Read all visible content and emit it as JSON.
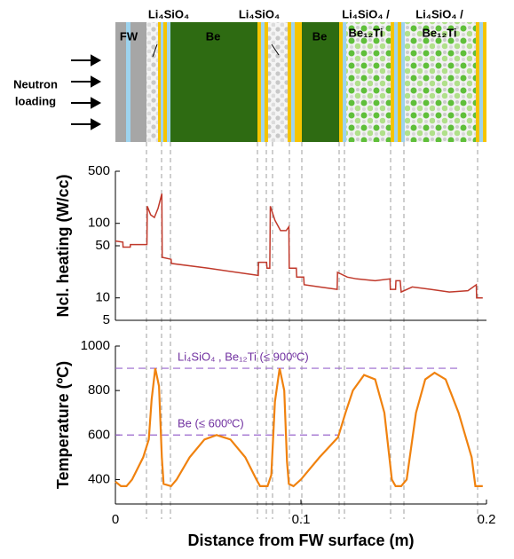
{
  "schematic": {
    "labels": [
      "FW",
      "Li₄SiO₄",
      "Be",
      "Li₄SiO₄",
      "Be",
      "Li₄SiO₄ /",
      "Be₁₂Ti",
      "Li₄SiO₄ /",
      "Be₁₂Ti"
    ],
    "source": [
      "Neutron",
      "loading"
    ]
  },
  "chart_data": [
    {
      "type": "line",
      "y_label": "Ncl. heating (W/cc)",
      "color": "#c0392b",
      "log": true,
      "xlim": [
        0,
        0.2
      ],
      "ylim": [
        5,
        500
      ],
      "yticks": [
        5,
        10,
        50,
        100,
        500
      ],
      "x": [
        0,
        0.004,
        0.0041,
        0.008,
        0.0081,
        0.017,
        0.0172,
        0.019,
        0.021,
        0.023,
        0.025,
        0.0252,
        0.03,
        0.0302,
        0.05,
        0.077,
        0.0772,
        0.0815,
        0.0817,
        0.0832,
        0.0835,
        0.086,
        0.089,
        0.092,
        0.0935,
        0.0937,
        0.0975,
        0.0977,
        0.1015,
        0.1017,
        0.11,
        0.1195,
        0.1197,
        0.125,
        0.13,
        0.14,
        0.148,
        0.1482,
        0.151,
        0.1512,
        0.1535,
        0.154,
        0.16,
        0.17,
        0.18,
        0.19,
        0.1945,
        0.1947,
        0.198
      ],
      "values": [
        58,
        56,
        48,
        48,
        52,
        52,
        170,
        130,
        120,
        160,
        250,
        35,
        33,
        29,
        25,
        20,
        30,
        30,
        25,
        25,
        170,
        110,
        80,
        80,
        90,
        25,
        25,
        19,
        19,
        15,
        14,
        13,
        22,
        19,
        18,
        17,
        18,
        13,
        13,
        17,
        17,
        12,
        14,
        13,
        12,
        12.5,
        15,
        10,
        10
      ]
    },
    {
      "type": "line",
      "y_label": "Temperature (ºC)",
      "x_label": "Distance from FW surface  (m)",
      "color": "#f0820f",
      "xlim": [
        0,
        0.2
      ],
      "ylim": [
        290,
        1000
      ],
      "xticks": [
        0,
        0.1,
        0.2
      ],
      "yticks": [
        400,
        600,
        800,
        1000
      ],
      "x": [
        0,
        0.003,
        0.006,
        0.009,
        0.015,
        0.018,
        0.0195,
        0.0215,
        0.0235,
        0.025,
        0.026,
        0.03,
        0.033,
        0.04,
        0.048,
        0.0545,
        0.062,
        0.07,
        0.076,
        0.078,
        0.082,
        0.084,
        0.086,
        0.0885,
        0.091,
        0.0925,
        0.0935,
        0.096,
        0.1,
        0.11,
        0.12,
        0.124,
        0.128,
        0.134,
        0.14,
        0.145,
        0.149,
        0.151,
        0.154,
        0.157,
        0.162,
        0.167,
        0.172,
        0.178,
        0.185,
        0.192,
        0.194,
        0.198
      ],
      "values": [
        390,
        370,
        370,
        400,
        500,
        580,
        760,
        900,
        820,
        500,
        380,
        370,
        400,
        500,
        580,
        600,
        580,
        500,
        400,
        370,
        370,
        420,
        750,
        900,
        800,
        480,
        380,
        370,
        400,
        500,
        590,
        700,
        800,
        870,
        850,
        700,
        400,
        370,
        370,
        400,
        700,
        850,
        880,
        850,
        700,
        500,
        370,
        370
      ],
      "annotations": [
        {
          "text": "Li₄SiO₄ , Be₁₂Ti (≤ 900ºC)",
          "y": 900,
          "x": [
            0,
            0.185
          ]
        },
        {
          "text": "Be (≤ 600ºC)",
          "y": 600,
          "x": [
            0,
            0.12
          ]
        }
      ]
    }
  ]
}
